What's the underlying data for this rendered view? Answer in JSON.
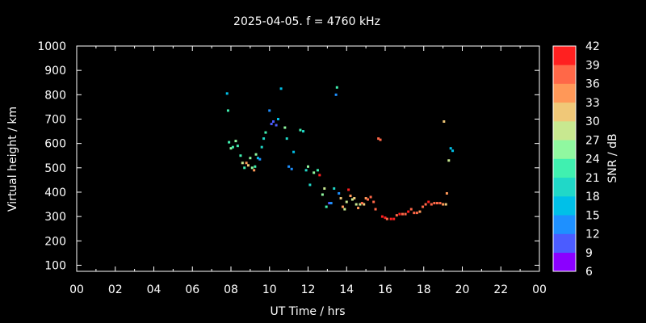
{
  "chart_data": {
    "type": "scatter",
    "title": "2025-04-05. f = 4760 kHz",
    "xlabel": "UT Time / hrs",
    "ylabel": "Virtual height / km",
    "xlim": [
      0,
      24
    ],
    "ylim": [
      75,
      1000
    ],
    "xticks": [
      "00",
      "02",
      "04",
      "06",
      "08",
      "10",
      "12",
      "14",
      "16",
      "18",
      "20",
      "22",
      "00"
    ],
    "yticks": [
      100,
      200,
      300,
      400,
      500,
      600,
      700,
      800,
      900,
      1000
    ],
    "colorbar": {
      "label": "SNR / dB",
      "ticks": [
        6,
        9,
        12,
        15,
        18,
        21,
        24,
        27,
        30,
        33,
        36,
        39,
        42
      ],
      "colors": [
        "#8b00ff",
        "#4b5cff",
        "#1e90ff",
        "#00c0e8",
        "#20d8c8",
        "#40f0b0",
        "#90f8a0",
        "#c8e890",
        "#f0c878",
        "#ff9858",
        "#ff6848",
        "#ff2020"
      ]
    },
    "points": [
      [
        7.8,
        805,
        16
      ],
      [
        7.85,
        735,
        21
      ],
      [
        7.9,
        605,
        23
      ],
      [
        8.0,
        580,
        24
      ],
      [
        8.1,
        585,
        21
      ],
      [
        8.25,
        610,
        26
      ],
      [
        8.35,
        590,
        22
      ],
      [
        8.5,
        550,
        23
      ],
      [
        8.6,
        520,
        28
      ],
      [
        8.7,
        500,
        22
      ],
      [
        8.8,
        520,
        33
      ],
      [
        8.9,
        510,
        30
      ],
      [
        9.0,
        540,
        24
      ],
      [
        9.1,
        500,
        26
      ],
      [
        9.2,
        490,
        33
      ],
      [
        9.25,
        505,
        21
      ],
      [
        9.3,
        555,
        25
      ],
      [
        9.4,
        540,
        15
      ],
      [
        9.5,
        535,
        13
      ],
      [
        9.6,
        585,
        19
      ],
      [
        9.7,
        620,
        18
      ],
      [
        9.8,
        645,
        22
      ],
      [
        10.0,
        735,
        12
      ],
      [
        10.1,
        680,
        11
      ],
      [
        10.2,
        690,
        9
      ],
      [
        10.35,
        675,
        11
      ],
      [
        10.45,
        700,
        16
      ],
      [
        10.6,
        825,
        17
      ],
      [
        10.8,
        665,
        24
      ],
      [
        10.9,
        620,
        19
      ],
      [
        11.0,
        505,
        12
      ],
      [
        11.15,
        495,
        14
      ],
      [
        11.25,
        565,
        16
      ],
      [
        11.6,
        655,
        21
      ],
      [
        11.75,
        650,
        20
      ],
      [
        11.9,
        490,
        18
      ],
      [
        12.0,
        505,
        24
      ],
      [
        12.1,
        430,
        18
      ],
      [
        12.3,
        480,
        24
      ],
      [
        12.5,
        490,
        21
      ],
      [
        12.6,
        470,
        39
      ],
      [
        12.75,
        390,
        25
      ],
      [
        12.85,
        415,
        28
      ],
      [
        12.95,
        340,
        21
      ],
      [
        13.1,
        355,
        11
      ],
      [
        13.2,
        355,
        14
      ],
      [
        13.35,
        415,
        18
      ],
      [
        13.45,
        800,
        14
      ],
      [
        13.5,
        830,
        22
      ],
      [
        13.6,
        395,
        12
      ],
      [
        13.7,
        375,
        30
      ],
      [
        13.8,
        340,
        33
      ],
      [
        13.9,
        330,
        28
      ],
      [
        14.0,
        360,
        27
      ],
      [
        14.1,
        410,
        39
      ],
      [
        14.2,
        385,
        33
      ],
      [
        14.3,
        370,
        27
      ],
      [
        14.4,
        375,
        30
      ],
      [
        14.5,
        350,
        29
      ],
      [
        14.6,
        335,
        33
      ],
      [
        14.7,
        350,
        27
      ],
      [
        14.8,
        355,
        36
      ],
      [
        14.9,
        350,
        31
      ],
      [
        15.0,
        375,
        33
      ],
      [
        15.1,
        370,
        36
      ],
      [
        15.25,
        380,
        37
      ],
      [
        15.4,
        360,
        36
      ],
      [
        15.5,
        330,
        38
      ],
      [
        15.65,
        620,
        36
      ],
      [
        15.75,
        615,
        37
      ],
      [
        15.85,
        300,
        39
      ],
      [
        16.0,
        295,
        40
      ],
      [
        16.1,
        290,
        38
      ],
      [
        16.3,
        290,
        39
      ],
      [
        16.45,
        290,
        40
      ],
      [
        16.6,
        305,
        38
      ],
      [
        16.75,
        310,
        39
      ],
      [
        16.9,
        310,
        37
      ],
      [
        17.05,
        310,
        38
      ],
      [
        17.2,
        320,
        39
      ],
      [
        17.35,
        330,
        38
      ],
      [
        17.5,
        315,
        38
      ],
      [
        17.65,
        315,
        37
      ],
      [
        17.8,
        320,
        35
      ],
      [
        17.95,
        340,
        37
      ],
      [
        18.1,
        350,
        38
      ],
      [
        18.25,
        360,
        39
      ],
      [
        18.4,
        350,
        37
      ],
      [
        18.55,
        355,
        36
      ],
      [
        18.7,
        355,
        38
      ],
      [
        18.85,
        355,
        37
      ],
      [
        19.0,
        350,
        35
      ],
      [
        19.05,
        690,
        30
      ],
      [
        19.15,
        350,
        31
      ],
      [
        19.2,
        395,
        33
      ],
      [
        19.3,
        530,
        28
      ],
      [
        19.4,
        580,
        15
      ],
      [
        19.5,
        570,
        16
      ]
    ]
  }
}
